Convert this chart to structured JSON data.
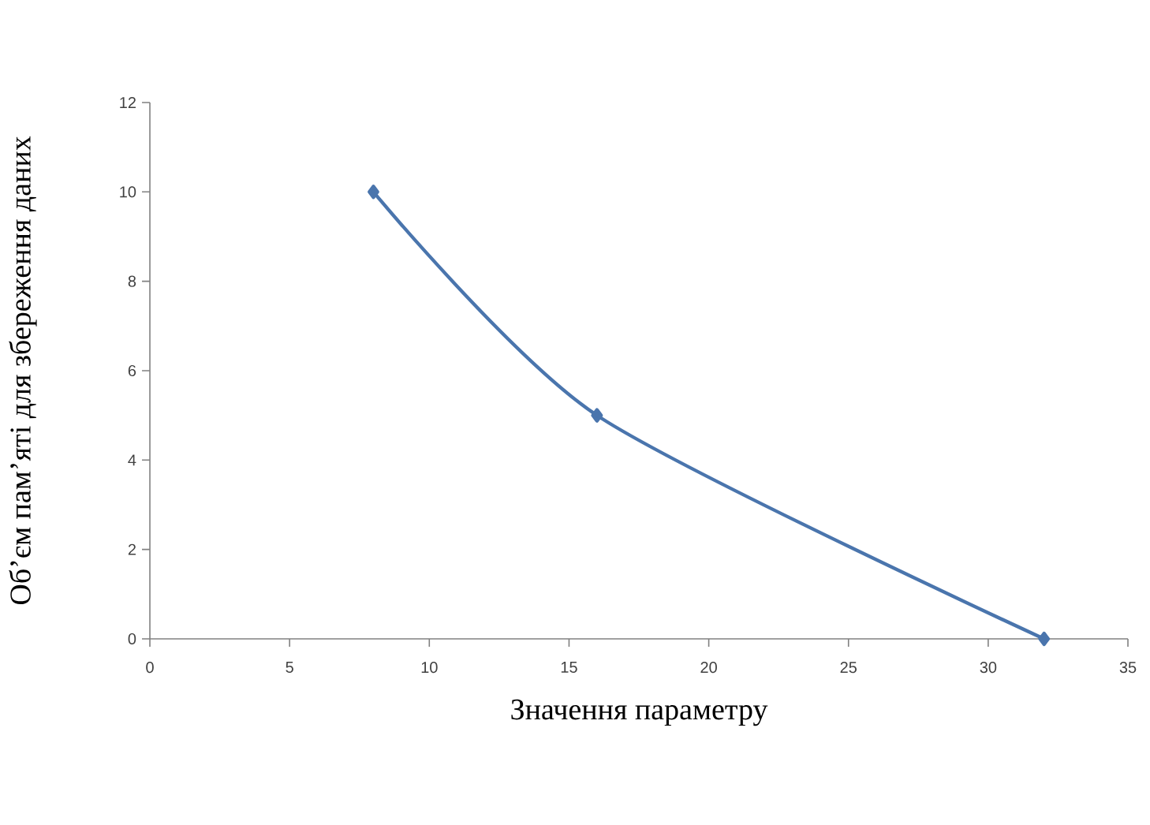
{
  "chart_data": {
    "type": "line",
    "xlabel": "Значення параметру",
    "ylabel": "Об’єм пам’яті для збереження даних",
    "x": [
      8,
      16,
      32
    ],
    "series": [
      {
        "color": "#4a75ad",
        "values": [
          10,
          5,
          0
        ]
      }
    ],
    "xlim": [
      0,
      35
    ],
    "xticks": [
      0,
      5,
      10,
      15,
      20,
      25,
      30,
      35
    ],
    "ylim": [
      0,
      12
    ],
    "yticks": [
      0,
      2,
      4,
      6,
      8,
      10,
      12
    ],
    "grid": false,
    "marker": "diamond",
    "line_style": "solid"
  }
}
